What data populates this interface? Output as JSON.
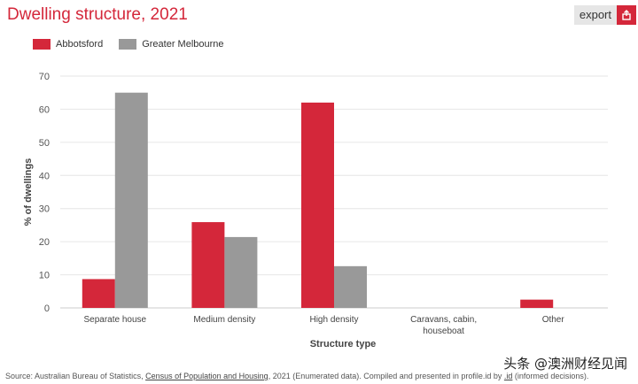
{
  "page": {
    "title": "Dwelling structure, 2021"
  },
  "export": {
    "label": "export",
    "icon": "export-icon"
  },
  "colors": {
    "series1": "#d4273a",
    "series2": "#999999",
    "accent": "#d4273a"
  },
  "chart_data": {
    "type": "bar",
    "title": "Dwelling structure, 2021",
    "xlabel": "Structure type",
    "ylabel": "% of dwellings",
    "ylim": [
      0,
      70
    ],
    "yticks": [
      0,
      10,
      20,
      30,
      40,
      50,
      60,
      70
    ],
    "grid": true,
    "legend_position": "top-left",
    "categories": [
      "Separate house",
      "Medium density",
      "High density",
      "Caravans, cabin, houseboat",
      "Other"
    ],
    "category_lines": [
      [
        "Separate house"
      ],
      [
        "Medium density"
      ],
      [
        "High density"
      ],
      [
        "Caravans, cabin,",
        "houseboat"
      ],
      [
        "Other"
      ]
    ],
    "series": [
      {
        "name": "Abbotsford",
        "values": [
          8.7,
          25.9,
          62.0,
          0.0,
          2.5
        ]
      },
      {
        "name": "Greater Melbourne",
        "values": [
          65.0,
          21.4,
          12.6,
          0.1,
          0.0
        ]
      }
    ]
  },
  "source": {
    "prefix": "Source: Australian Bureau of Statistics, ",
    "link": "Census of Population and Housing",
    "middle": ", 2021 (Enumerated data). Compiled and presented in profile.id by ",
    "link2": ".id",
    "suffix": " (informed decisions)."
  },
  "watermark": "头条 @澳洲财经见闻"
}
